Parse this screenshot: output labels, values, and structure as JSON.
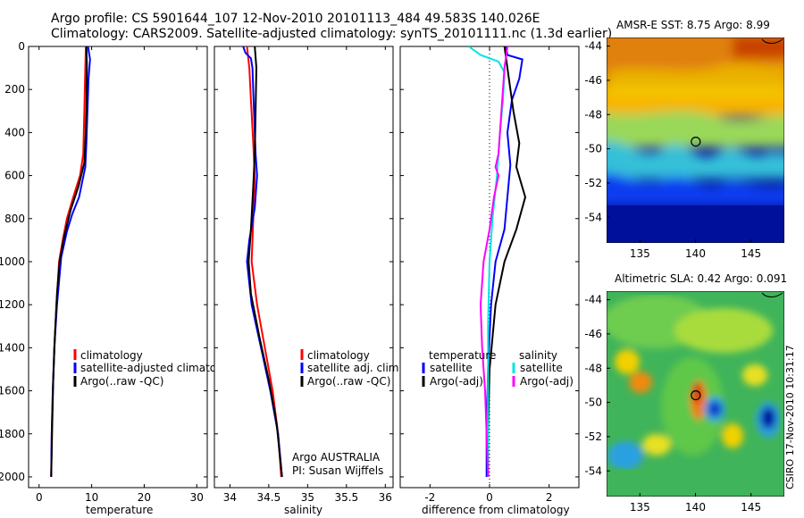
{
  "title_line1": "Argo profile: CS 5901644_107 12-Nov-2010 20101113_484 49.583S 140.026E",
  "title_line2": "Climatology: CARS2009. Satellite-adjusted climatology: synTS_20101111.nc (1.3d earlier)",
  "side_stamp": "CSIRO 17-Nov-2010 10:31:17",
  "colors": {
    "red": "#ff0000",
    "blue": "#0000ff",
    "black": "#000000",
    "cyan": "#00e5e5",
    "magenta": "#ff00ff"
  },
  "chart_data": [
    {
      "type": "line",
      "id": "temperature",
      "xlabel": "temperature",
      "xlim": [
        -2,
        32
      ],
      "ylim": [
        2050,
        0
      ],
      "xticks": [
        0,
        10,
        20,
        30
      ],
      "yticks": [
        0,
        200,
        400,
        600,
        800,
        1000,
        1200,
        1400,
        1600,
        1800,
        2000
      ],
      "series": [
        {
          "name": "climatology",
          "color": "#ff0000",
          "points": [
            [
              8.9,
              0
            ],
            [
              8.8,
              100
            ],
            [
              8.6,
              300
            ],
            [
              8.4,
              500
            ],
            [
              7.8,
              600
            ],
            [
              6.5,
              700
            ],
            [
              5.3,
              800
            ],
            [
              4.5,
              900
            ],
            [
              3.8,
              1000
            ],
            [
              3.3,
              1200
            ],
            [
              2.9,
              1400
            ],
            [
              2.6,
              1600
            ],
            [
              2.4,
              1800
            ],
            [
              2.3,
              2000
            ]
          ]
        },
        {
          "name": "satellite-adjusted climatology",
          "color": "#0000ff",
          "points": [
            [
              9.3,
              0
            ],
            [
              9.7,
              60
            ],
            [
              9.4,
              150
            ],
            [
              9.2,
              300
            ],
            [
              9.0,
              450
            ],
            [
              8.8,
              560
            ],
            [
              7.6,
              700
            ],
            [
              6.3,
              780
            ],
            [
              5.3,
              860
            ],
            [
              4.2,
              980
            ],
            [
              3.4,
              1200
            ],
            [
              2.9,
              1400
            ],
            [
              2.6,
              1600
            ],
            [
              2.4,
              1800
            ],
            [
              2.3,
              2000
            ]
          ]
        },
        {
          "name": "Argo(..raw -QC)",
          "color": "#000000",
          "points": [
            [
              9.0,
              0
            ],
            [
              9.1,
              100
            ],
            [
              9.0,
              300
            ],
            [
              8.8,
              450
            ],
            [
              8.6,
              540
            ],
            [
              7.5,
              650
            ],
            [
              6.0,
              760
            ],
            [
              4.8,
              880
            ],
            [
              3.9,
              1000
            ],
            [
              3.4,
              1150
            ],
            [
              3.0,
              1350
            ],
            [
              2.7,
              1550
            ],
            [
              2.5,
              1750
            ],
            [
              2.3,
              2000
            ]
          ]
        }
      ]
    },
    {
      "type": "line",
      "id": "salinity",
      "xlabel": "salinity",
      "xlim": [
        33.8,
        36.1
      ],
      "ylim": [
        2050,
        0
      ],
      "xticks": [
        34,
        34.5,
        35,
        35.5,
        36
      ],
      "series": [
        {
          "name": "climatology",
          "color": "#ff0000",
          "points": [
            [
              34.22,
              0
            ],
            [
              34.25,
              100
            ],
            [
              34.27,
              250
            ],
            [
              34.3,
              450
            ],
            [
              34.32,
              600
            ],
            [
              34.3,
              800
            ],
            [
              34.28,
              1000
            ],
            [
              34.35,
              1200
            ],
            [
              34.45,
              1400
            ],
            [
              34.55,
              1600
            ],
            [
              34.62,
              1800
            ],
            [
              34.66,
              2000
            ]
          ]
        },
        {
          "name": "satellite adj. clim.",
          "color": "#0000ff",
          "points": [
            [
              34.17,
              0
            ],
            [
              34.2,
              30
            ],
            [
              34.27,
              55
            ],
            [
              34.29,
              100
            ],
            [
              34.31,
              300
            ],
            [
              34.33,
              500
            ],
            [
              34.35,
              600
            ],
            [
              34.32,
              750
            ],
            [
              34.25,
              900
            ],
            [
              34.22,
              1000
            ],
            [
              34.28,
              1200
            ],
            [
              34.4,
              1400
            ],
            [
              34.52,
              1600
            ],
            [
              34.62,
              1800
            ],
            [
              34.67,
              2000
            ]
          ]
        },
        {
          "name": "Argo(..raw -QC)",
          "color": "#000000",
          "points": [
            [
              34.32,
              0
            ],
            [
              34.34,
              100
            ],
            [
              34.33,
              300
            ],
            [
              34.32,
              500
            ],
            [
              34.3,
              650
            ],
            [
              34.27,
              850
            ],
            [
              34.24,
              1000
            ],
            [
              34.27,
              1150
            ],
            [
              34.38,
              1350
            ],
            [
              34.5,
              1550
            ],
            [
              34.6,
              1750
            ],
            [
              34.67,
              2000
            ]
          ]
        }
      ],
      "annotation_line1": "Argo AUSTRALIA",
      "annotation_line2": "PI: Susan Wijffels"
    },
    {
      "type": "line",
      "id": "difference",
      "xlabel": "difference from climatology",
      "xlim": [
        -3,
        3
      ],
      "ylim": [
        2050,
        0
      ],
      "xticks": [
        -2,
        0,
        2
      ],
      "legend_headers": [
        "temperature",
        "salinity"
      ],
      "series": [
        {
          "name": "satellite",
          "group": "temperature",
          "color": "#0000ff",
          "points": [
            [
              0.55,
              0
            ],
            [
              0.6,
              40
            ],
            [
              1.1,
              60
            ],
            [
              1.0,
              150
            ],
            [
              0.75,
              250
            ],
            [
              0.6,
              400
            ],
            [
              0.7,
              550
            ],
            [
              0.6,
              700
            ],
            [
              0.5,
              850
            ],
            [
              0.2,
              1000
            ],
            [
              0.05,
              1200
            ],
            [
              -0.05,
              1500
            ],
            [
              -0.1,
              1800
            ],
            [
              -0.1,
              2000
            ]
          ]
        },
        {
          "name": "Argo(-adj)",
          "group": "temperature",
          "color": "#000000",
          "points": [
            [
              0.5,
              0
            ],
            [
              0.6,
              100
            ],
            [
              0.8,
              300
            ],
            [
              1.0,
              450
            ],
            [
              0.9,
              560
            ],
            [
              1.2,
              700
            ],
            [
              0.9,
              850
            ],
            [
              0.5,
              1000
            ],
            [
              0.2,
              1200
            ],
            [
              0.0,
              1500
            ],
            [
              -0.05,
              1800
            ],
            [
              -0.05,
              2000
            ]
          ]
        },
        {
          "name": "satellite",
          "group": "salinity",
          "color": "#00e5e5",
          "points": [
            [
              -0.7,
              0
            ],
            [
              -0.3,
              40
            ],
            [
              0.3,
              70
            ],
            [
              0.5,
              120
            ],
            [
              0.45,
              250
            ],
            [
              0.35,
              400
            ],
            [
              0.25,
              600
            ],
            [
              0.1,
              800
            ],
            [
              0.0,
              1000
            ],
            [
              -0.05,
              1300
            ],
            [
              -0.05,
              1600
            ],
            [
              -0.05,
              1800
            ],
            [
              -0.05,
              2000
            ]
          ]
        },
        {
          "name": "Argo(-adj)",
          "group": "salinity",
          "color": "#ff00ff",
          "points": [
            [
              0.6,
              0
            ],
            [
              0.5,
              100
            ],
            [
              0.4,
              300
            ],
            [
              0.3,
              500
            ],
            [
              0.2,
              560
            ],
            [
              0.3,
              600
            ],
            [
              0.15,
              700
            ],
            [
              0.0,
              850
            ],
            [
              -0.2,
              1000
            ],
            [
              -0.3,
              1200
            ],
            [
              -0.25,
              1400
            ],
            [
              -0.15,
              1600
            ],
            [
              -0.1,
              1800
            ],
            [
              -0.05,
              2000
            ]
          ]
        }
      ]
    },
    {
      "type": "heatmap",
      "id": "sst-map",
      "title": "AMSR-E SST: 8.75 Argo: 8.99",
      "xlim": [
        132,
        148
      ],
      "ylim": [
        -55.5,
        -43.5
      ],
      "xticks": [
        135,
        140,
        145
      ],
      "yticks": [
        -44,
        -46,
        -48,
        -50,
        -52,
        -54
      ],
      "float_position": [
        140.026,
        -49.583
      ]
    },
    {
      "type": "heatmap",
      "id": "sla-map",
      "title": "Altimetric SLA: 0.42 Argo: 0.091",
      "xlim": [
        132,
        148
      ],
      "ylim": [
        -55.5,
        -43.5
      ],
      "xticks": [
        135,
        140,
        145
      ],
      "yticks": [
        -44,
        -46,
        -48,
        -50,
        -52,
        -54
      ],
      "float_position": [
        140.026,
        -49.583
      ]
    }
  ],
  "legends": {
    "temperature": [
      "climatology",
      "satellite-adjusted climatology",
      "Argo(..raw -QC)"
    ],
    "salinity": [
      "climatology",
      "satellite adj. clim.",
      "Argo(..raw -QC)"
    ],
    "difference_temperature": [
      "satellite",
      "Argo(-adj)"
    ],
    "difference_salinity": [
      "satellite",
      "Argo(-adj)"
    ]
  }
}
